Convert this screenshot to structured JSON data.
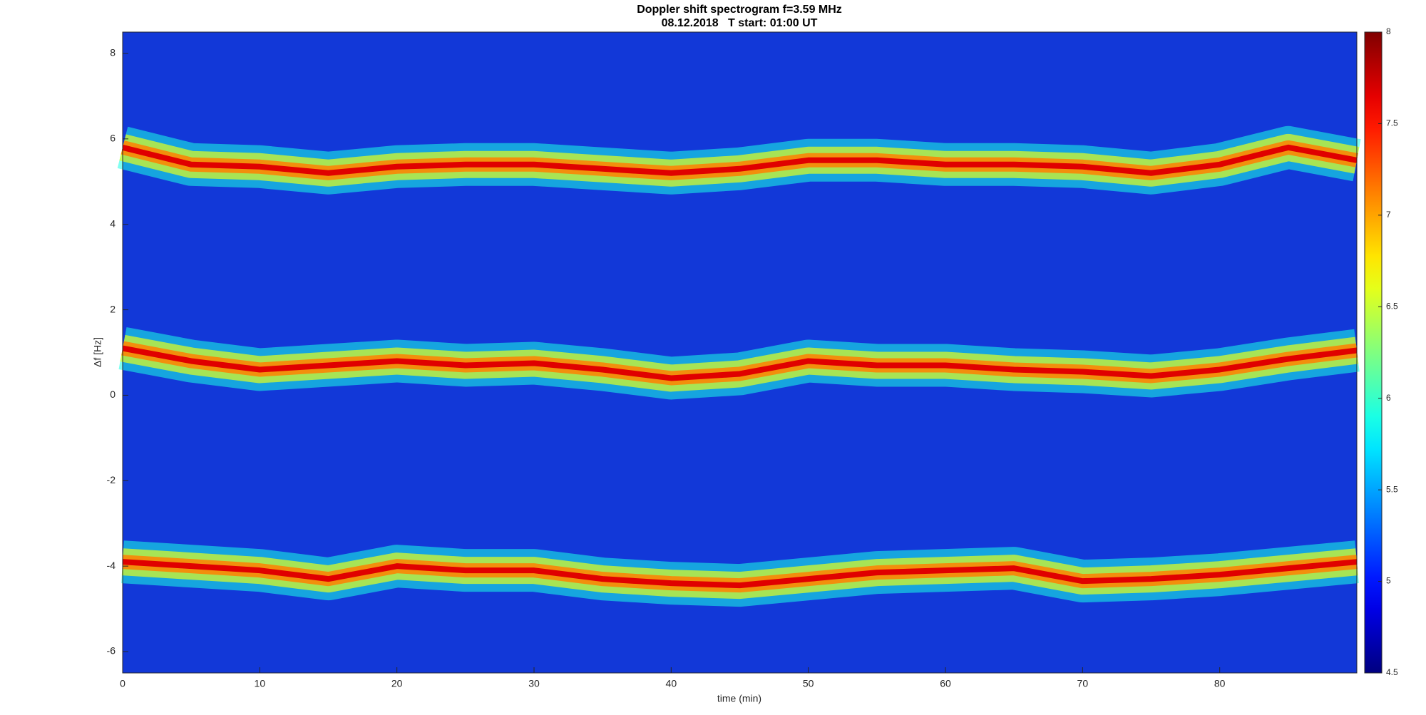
{
  "chart_data": {
    "type": "spectrogram",
    "title": "Doppler shift spectrogram f=3.59 MHz",
    "subtitle": "08.12.2018   T start: 01:00 UT",
    "x_label": "time (min)",
    "y_label": "Δf [Hz]",
    "x": [
      0,
      5,
      10,
      15,
      20,
      25,
      30,
      35,
      40,
      45,
      50,
      55,
      60,
      65,
      70,
      75,
      80,
      85,
      90
    ],
    "series": [
      {
        "color": "#e00000",
        "values": [
          5.8,
          5.4,
          5.35,
          5.2,
          5.35,
          5.4,
          5.4,
          5.3,
          5.2,
          5.3,
          5.5,
          5.5,
          5.4,
          5.4,
          5.35,
          5.2,
          5.4,
          5.8,
          5.5
        ]
      },
      {
        "color": "#e00000",
        "values": [
          1.1,
          0.8,
          0.6,
          0.7,
          0.8,
          0.7,
          0.75,
          0.6,
          0.4,
          0.5,
          0.8,
          0.7,
          0.7,
          0.6,
          0.55,
          0.45,
          0.6,
          0.85,
          1.05
        ]
      },
      {
        "color": "#e00000",
        "values": [
          -3.9,
          -4.0,
          -4.1,
          -4.3,
          -4.0,
          -4.1,
          -4.1,
          -4.3,
          -4.4,
          -4.45,
          -4.3,
          -4.15,
          -4.1,
          -4.05,
          -4.35,
          -4.3,
          -4.2,
          -4.05,
          -3.9
        ]
      }
    ],
    "xlim": [
      0,
      90
    ],
    "xticks": [
      0,
      10,
      20,
      30,
      40,
      50,
      60,
      70,
      80
    ],
    "ylim": [
      -6.5,
      8.5
    ],
    "yticks": [
      -6,
      -4,
      -2,
      0,
      2,
      4,
      6,
      8
    ],
    "colormap": "jet",
    "clim": [
      4.5,
      8
    ],
    "cticks": [
      4.5,
      5,
      5.5,
      6,
      6.5,
      7,
      7.5,
      8
    ],
    "background_color": "#1238d8"
  }
}
